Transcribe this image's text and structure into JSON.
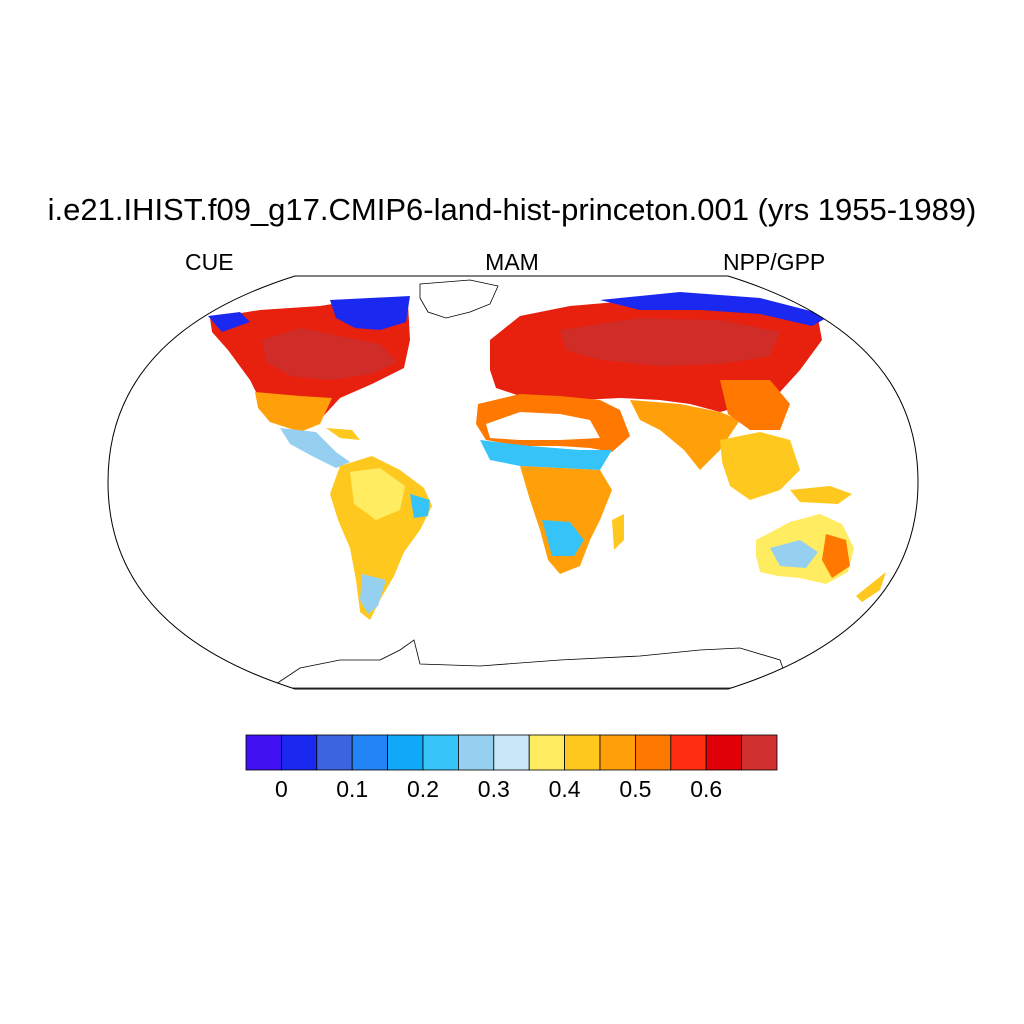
{
  "header": {
    "title": "i.e21.IHIST.f09_g17.CMIP6-land-hist-princeton.001 (yrs 1955-1989)",
    "left_label": "CUE",
    "center_label": "MAM",
    "right_label": "NPP/GPP"
  },
  "map": {
    "projection": "Robinson",
    "variable": "CUE",
    "season": "MAM",
    "missing_regions": [
      "Greenland",
      "Antarctica",
      "central Sahara",
      "Arabian Peninsula interior"
    ]
  },
  "colorbar": {
    "colors": [
      "#4010f0",
      "#1a28f0",
      "#3c64e0",
      "#2284f5",
      "#10a8f8",
      "#36c4f8",
      "#96d0f0",
      "#c8e8f8",
      "#ffec60",
      "#ffc81e",
      "#ffa00a",
      "#ff7800",
      "#ff2e10",
      "#e00008",
      "#d03030"
    ],
    "tick_labels": [
      "0",
      "0.1",
      "0.2",
      "0.3",
      "0.4",
      "0.5",
      "0.6"
    ]
  }
}
